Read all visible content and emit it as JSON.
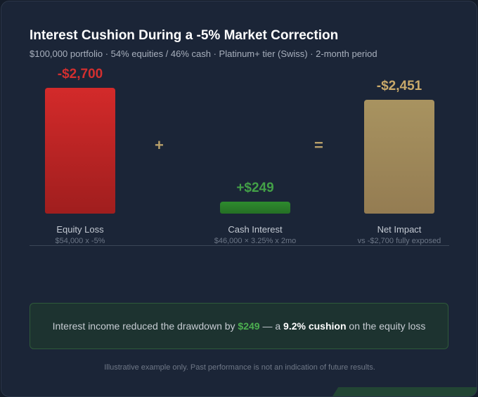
{
  "title": "Interest Cushion During a -5% Market Correction",
  "subtitle": "$100,000 portfolio · 54% equities / 46% cash · Platinum+ tier (Swiss) · 2-month period",
  "chart_data": {
    "type": "bar",
    "categories": [
      "Equity Loss",
      "Cash Interest",
      "Net Impact"
    ],
    "values": [
      -2700,
      249,
      -2451
    ],
    "value_labels": [
      "-$2,700",
      "+$249",
      "-$2,451"
    ],
    "sublabels": [
      "$54,000 x -5%",
      "$46,000 × 3.25% x 2mo",
      "vs -$2,700 fully exposed"
    ],
    "operators": [
      "+",
      "="
    ],
    "colors": [
      "#c62828",
      "#2e7d32",
      "#a68b5b"
    ],
    "value_label_colors": [
      "#d32f2f",
      "#43a047",
      "#c9a96a"
    ]
  },
  "callout": {
    "prefix": "Interest income reduced the drawdown by ",
    "amount": "$249",
    "middle": " — a ",
    "cushion": "9.2% cushion",
    "suffix": " on the equity loss"
  },
  "footer": "Illustrative example only. Past performance is not an indication of future results."
}
